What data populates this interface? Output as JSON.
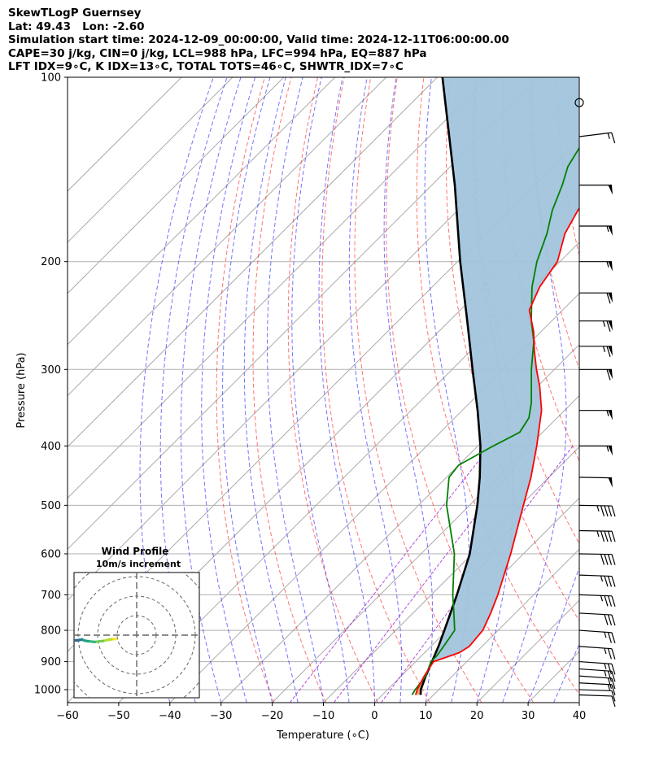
{
  "header": {
    "title": "SkewTLogP Guernsey",
    "location": "Lat: 49.43   Lon: -2.60",
    "times": "Simulation start time: 2024-12-09_00:00:00, Valid time: 2024-12-11T06:00:00.00",
    "indices_1": "CAPE=30 j/kg, CIN=0 j/kg, LCL=988 hPa, LFC=994 hPa, EQ=887 hPa",
    "indices_2": "LFT IDX=9∘C, K IDX=13∘C, TOTAL TOTS=46∘C, SHWTR_IDX=7∘C"
  },
  "chart_data": [
    {
      "type": "line",
      "subtype": "skew-t log-p diagram",
      "xlabel": "Temperature (∘C)",
      "ylabel": "Pressure (hPa)",
      "xlim": [
        -60,
        40
      ],
      "ylim": [
        1050,
        100
      ],
      "y_scale": "log",
      "grid": true,
      "x_ticks": [
        -60,
        -50,
        -40,
        -30,
        -20,
        -10,
        0,
        10,
        20,
        30,
        40
      ],
      "x_tick_labels": [
        "−60",
        "−50",
        "−40",
        "−30",
        "−20",
        "−10",
        "0",
        "10",
        "20",
        "30",
        "40"
      ],
      "y_ticks": [
        1000,
        900,
        800,
        700,
        600,
        500,
        400,
        300,
        200,
        100
      ],
      "y_tick_labels": [
        "1000",
        "900",
        "800",
        "700",
        "600",
        "500",
        "400",
        "300",
        "200",
        "100"
      ],
      "series": [
        {
          "role": "temperature",
          "color": "#ff0000",
          "points": [
            [
              1020,
              6.5
            ],
            [
              1000,
              5.8
            ],
            [
              950,
              4.5
            ],
            [
              900,
              3.5
            ],
            [
              870,
              6.8
            ],
            [
              850,
              7.5
            ],
            [
              800,
              7.0
            ],
            [
              750,
              5.2
            ],
            [
              700,
              3.0
            ],
            [
              600,
              -2.5
            ],
            [
              500,
              -9.5
            ],
            [
              450,
              -13.5
            ],
            [
              400,
              -18.5
            ],
            [
              350,
              -24.5
            ],
            [
              320,
              -29.5
            ],
            [
              300,
              -33.5
            ],
            [
              280,
              -37.5
            ],
            [
              260,
              -41.5
            ],
            [
              240,
              -46.5
            ],
            [
              220,
              -49.0
            ],
            [
              200,
              -50.5
            ],
            [
              180,
              -54.5
            ],
            [
              165,
              -56.5
            ],
            [
              150,
              -58.0
            ],
            [
              140,
              -59.0
            ],
            [
              130,
              -61.0
            ],
            [
              120,
              -62.0
            ],
            [
              110,
              -59.5
            ],
            [
              100,
              -58.0
            ]
          ]
        },
        {
          "role": "dewpoint",
          "color": "#008000",
          "points": [
            [
              1020,
              5.8
            ],
            [
              1000,
              5.4
            ],
            [
              950,
              4.8
            ],
            [
              900,
              3.0
            ],
            [
              880,
              3.0
            ],
            [
              850,
              2.5
            ],
            [
              800,
              1.5
            ],
            [
              750,
              -2.0
            ],
            [
              700,
              -5.8
            ],
            [
              600,
              -13.5
            ],
            [
              500,
              -24.5
            ],
            [
              450,
              -29.5
            ],
            [
              430,
              -30.0
            ],
            [
              400,
              -27.0
            ],
            [
              380,
              -24.5
            ],
            [
              360,
              -25.5
            ],
            [
              340,
              -28.0
            ],
            [
              300,
              -34.5
            ],
            [
              270,
              -39.5
            ],
            [
              250,
              -44.0
            ],
            [
              220,
              -50.5
            ],
            [
              200,
              -54.5
            ],
            [
              180,
              -58.0
            ],
            [
              165,
              -61.5
            ],
            [
              150,
              -64.5
            ],
            [
              140,
              -67.0
            ],
            [
              130,
              -68.5
            ],
            [
              120,
              -70.0
            ],
            [
              110,
              -71.5
            ],
            [
              100,
              -72.5
            ]
          ]
        },
        {
          "role": "parcel",
          "color": "#000000",
          "points": [
            [
              1020,
              7.5
            ],
            [
              1000,
              6.5
            ],
            [
              950,
              4.8
            ],
            [
              900,
              3.2
            ],
            [
              850,
              1.5
            ],
            [
              800,
              -0.5
            ],
            [
              700,
              -5.0
            ],
            [
              600,
              -10.5
            ],
            [
              500,
              -18.5
            ],
            [
              450,
              -23.5
            ],
            [
              400,
              -29.5
            ],
            [
              350,
              -37.0
            ],
            [
              300,
              -46.0
            ],
            [
              250,
              -56.5
            ],
            [
              200,
              -69.5
            ],
            [
              150,
              -85.5
            ],
            [
              100,
              -109.0
            ]
          ]
        }
      ],
      "cape_fill_color": "#a1c4dc",
      "cin_fill_color": "#e6a06e",
      "dry_adiabat_color": "#ff0000",
      "moist_adiabat_color": "#0000ff",
      "mixing_ratio_color": "#9400d3",
      "isotherm_color": "#aaaaaa"
    },
    {
      "type": "hodograph",
      "title": "Wind Profile",
      "subtitle": "10m/s increment",
      "colormap": "viridis",
      "points_ms": [
        [
          -10.6,
          -1.9
        ],
        [
          -11.3,
          -2.0
        ],
        [
          -12.8,
          -2.1
        ],
        [
          -15.0,
          -2.5
        ],
        [
          -17.2,
          -3.0
        ],
        [
          -19.3,
          -3.2
        ],
        [
          -21.5,
          -3.5
        ],
        [
          -23.2,
          -3.3
        ],
        [
          -25.0,
          -3.1
        ],
        [
          -26.8,
          -2.8
        ],
        [
          -28.0,
          -2.2
        ],
        [
          -29.3,
          -2.5
        ],
        [
          -31.3,
          -2.7
        ],
        [
          -34.0,
          -2.8
        ],
        [
          -36.4,
          -2.9
        ],
        [
          -38.5,
          -2.4
        ],
        [
          -40.6,
          -1.3
        ],
        [
          -41.8,
          -1.1
        ],
        [
          -42.0,
          -1.1
        ],
        [
          -43.0,
          -1.3
        ]
      ]
    },
    {
      "type": "wind-barbs",
      "barbs": [
        [
          1020,
          10,
          -2
        ],
        [
          1000,
          10,
          -2
        ],
        [
          975,
          15,
          -3
        ],
        [
          950,
          20,
          -4
        ],
        [
          925,
          25,
          -4
        ],
        [
          900,
          25,
          -4
        ],
        [
          850,
          25,
          -4
        ],
        [
          800,
          25,
          -4
        ],
        [
          750,
          30,
          -3
        ],
        [
          700,
          35,
          -2
        ],
        [
          650,
          35,
          -2
        ],
        [
          600,
          40,
          -1
        ],
        [
          550,
          45,
          -1
        ],
        [
          500,
          45,
          -1
        ],
        [
          450,
          50,
          -1
        ],
        [
          400,
          55,
          0
        ],
        [
          350,
          55,
          0
        ],
        [
          300,
          60,
          0
        ],
        [
          275,
          65,
          0
        ],
        [
          250,
          65,
          0
        ],
        [
          225,
          60,
          0
        ],
        [
          200,
          55,
          0
        ],
        [
          175,
          55,
          0
        ],
        [
          150,
          50,
          0
        ],
        [
          125,
          15,
          7
        ],
        [
          110,
          0,
          0
        ]
      ]
    }
  ]
}
